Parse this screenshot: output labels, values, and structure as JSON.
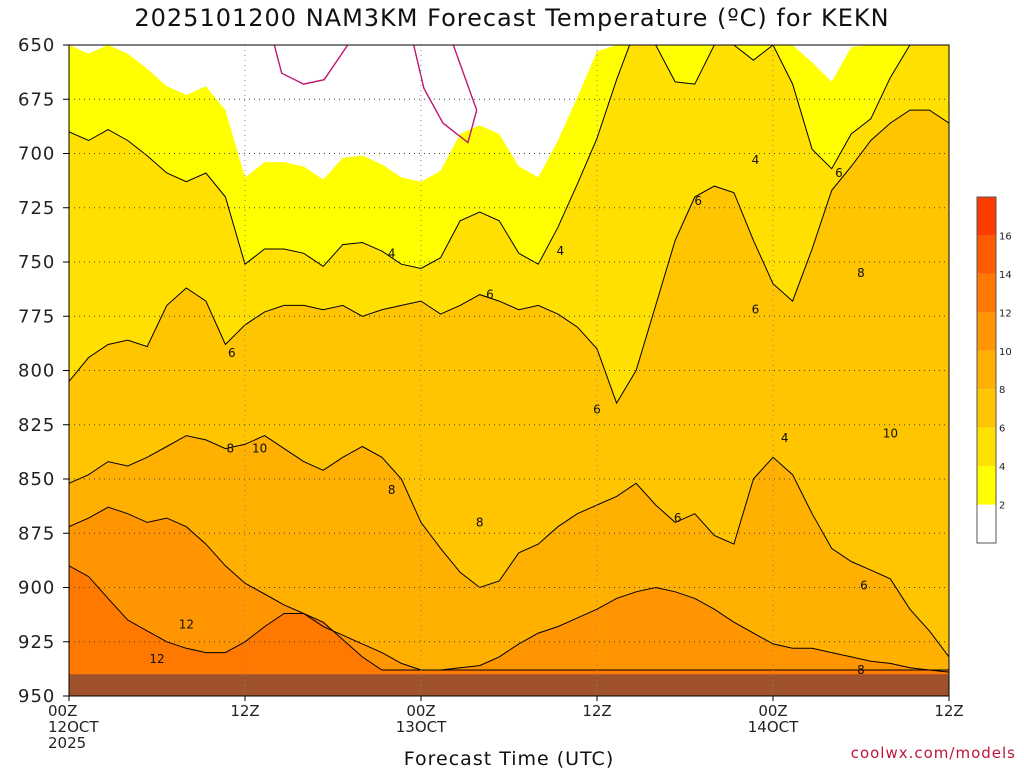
{
  "title": "2025101200 NAM3KM Forecast Temperature (ºC) for KEKN",
  "watermark": "coolwx.com/models",
  "chart_data": {
    "type": "heatmap",
    "title": "2025101200 NAM3KM Forecast Temperature (ºC) for KEKN",
    "xlabel": "Forecast Time (UTC)",
    "ylabel": "",
    "x_range_hours": [
      0,
      60
    ],
    "y_range_hPa": [
      650,
      950
    ],
    "y_ticks": [
      650,
      675,
      700,
      725,
      750,
      775,
      800,
      825,
      850,
      875,
      900,
      925,
      950
    ],
    "x_ticks": [
      {
        "hour": 0,
        "lines": [
          "00Z",
          "12OCT",
          "2025"
        ]
      },
      {
        "hour": 12,
        "lines": [
          "12Z"
        ]
      },
      {
        "hour": 24,
        "lines": [
          "00Z",
          "13OCT"
        ]
      },
      {
        "hour": 36,
        "lines": [
          "12Z"
        ]
      },
      {
        "hour": 48,
        "lines": [
          "00Z",
          "14OCT"
        ]
      },
      {
        "hour": 60,
        "lines": [
          "12Z"
        ]
      }
    ],
    "grid": true,
    "colorbar": {
      "position": "right",
      "bands": [
        {
          "min": 0,
          "max": 2,
          "color": "#ffffff"
        },
        {
          "min": 2,
          "max": 4,
          "color": "#ffff00"
        },
        {
          "min": 4,
          "max": 6,
          "color": "#ffe000"
        },
        {
          "min": 6,
          "max": 8,
          "color": "#ffc500"
        },
        {
          "min": 8,
          "max": 10,
          "color": "#ffb000"
        },
        {
          "min": 10,
          "max": 12,
          "color": "#ff9500"
        },
        {
          "min": 12,
          "max": 14,
          "color": "#ff7800"
        },
        {
          "min": 14,
          "max": 16,
          "color": "#ff5c00"
        },
        {
          "min": 16,
          "max": 18,
          "color": "#ff3c00"
        }
      ],
      "tick_labels": [
        "2",
        "4",
        "6",
        "8",
        "10",
        "12",
        "14",
        "16"
      ]
    },
    "contour_levels": [
      4,
      6,
      8,
      10,
      12
    ],
    "freezing_line_color": "#c0186e",
    "ground_color": "#a0522d",
    "ground_top_hPa": 940,
    "isotherms": [
      {
        "level": 4,
        "pressures_hPa": [
          690,
          694,
          689,
          694,
          701,
          709,
          713,
          709,
          720,
          751,
          744,
          744,
          746,
          752,
          742,
          741,
          745,
          751,
          753,
          748,
          731,
          727,
          731,
          746,
          751,
          734,
          714,
          693,
          666,
          642,
          650,
          667,
          668,
          650,
          650,
          657,
          650,
          668,
          698,
          707,
          691,
          684,
          665,
          650,
          650,
          650
        ]
      },
      {
        "level": 6,
        "pressures_hPa": [
          805,
          794,
          788,
          786,
          789,
          770,
          762,
          768,
          788,
          779,
          773,
          770,
          770,
          772,
          770,
          775,
          772,
          770,
          768,
          774,
          770,
          765,
          768,
          772,
          770,
          774,
          780,
          790,
          815,
          800,
          770,
          740,
          720,
          715,
          718,
          740,
          760,
          768,
          744,
          717,
          706,
          694,
          686,
          680,
          680,
          686
        ]
      },
      {
        "level": 8,
        "pressures_hPa": [
          852,
          848,
          842,
          844,
          840,
          835,
          830,
          832,
          836,
          834,
          830,
          836,
          842,
          846,
          840,
          835,
          840,
          850,
          870,
          882,
          893,
          900,
          897,
          884,
          880,
          872,
          866,
          862,
          858,
          852,
          862,
          870,
          866,
          876,
          880,
          850,
          840,
          848,
          866,
          882,
          888,
          892,
          896,
          910,
          920,
          932
        ]
      },
      {
        "level": 10,
        "pressures_hPa": [
          872,
          868,
          863,
          866,
          870,
          868,
          872,
          880,
          890,
          898,
          903,
          908,
          912,
          918,
          922,
          926,
          930,
          935,
          938,
          938,
          937,
          936,
          932,
          926,
          921,
          918,
          914,
          910,
          905,
          902,
          900,
          902,
          905,
          910,
          916,
          921,
          926,
          928,
          928,
          930,
          932,
          934,
          935,
          937,
          938,
          939
        ]
      },
      {
        "level": 12,
        "pressures_hPa": [
          890,
          895,
          905,
          915,
          920,
          925,
          928,
          930,
          930,
          925,
          918,
          912,
          912,
          916,
          924,
          932,
          938,
          938,
          938,
          938,
          938,
          938,
          938,
          938,
          938,
          938,
          938,
          938,
          938,
          938,
          938,
          938,
          938,
          938,
          938,
          938,
          938,
          938,
          938,
          938,
          938,
          938,
          938,
          938,
          938,
          938
        ]
      }
    ],
    "contour_labels": [
      {
        "value": 4,
        "hour": 22,
        "hPa": 746
      },
      {
        "value": 4,
        "hour": 33.5,
        "hPa": 745
      },
      {
        "value": 4,
        "hour": 46.8,
        "hPa": 703
      },
      {
        "value": 4,
        "hour": 48.8,
        "hPa": 831
      },
      {
        "value": 6,
        "hour": 11.1,
        "hPa": 792
      },
      {
        "value": 6,
        "hour": 28.7,
        "hPa": 765
      },
      {
        "value": 6,
        "hour": 42.9,
        "hPa": 722
      },
      {
        "value": 6,
        "hour": 46.8,
        "hPa": 772
      },
      {
        "value": 6,
        "hour": 36,
        "hPa": 818
      },
      {
        "value": 6,
        "hour": 41.5,
        "hPa": 868
      },
      {
        "value": 6,
        "hour": 52.5,
        "hPa": 709
      },
      {
        "value": 6,
        "hour": 54.2,
        "hPa": 899
      },
      {
        "value": 8,
        "hour": 11,
        "hPa": 836
      },
      {
        "value": 8,
        "hour": 22,
        "hPa": 855
      },
      {
        "value": 8,
        "hour": 28,
        "hPa": 870
      },
      {
        "value": 8,
        "hour": 54,
        "hPa": 755
      },
      {
        "value": 8,
        "hour": 54,
        "hPa": 938
      },
      {
        "value": 10,
        "hour": 13,
        "hPa": 836
      },
      {
        "value": 10,
        "hour": 56,
        "hPa": 829
      },
      {
        "value": 12,
        "hour": 8,
        "hPa": 917
      },
      {
        "value": 12,
        "hour": 6,
        "hPa": 933
      }
    ]
  }
}
